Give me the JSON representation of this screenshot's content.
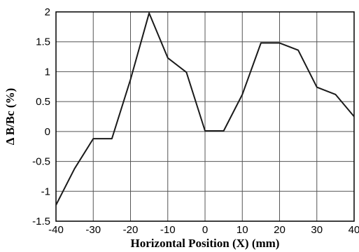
{
  "chart_data": {
    "type": "line",
    "xlabel": "Horizontal Position (X) (mm)",
    "ylabel": "Δ B/Bc (%)",
    "xlim": [
      -40,
      40
    ],
    "ylim": [
      -1.5,
      2
    ],
    "x_ticks": [
      -40,
      -30,
      -20,
      -10,
      0,
      10,
      20,
      30,
      40
    ],
    "y_ticks": [
      -1.5,
      -1,
      -0.5,
      0,
      0.5,
      1,
      1.5,
      2
    ],
    "x_tick_labels": [
      "-40",
      "-30",
      "-20",
      "-10",
      "0",
      "10",
      "20",
      "30",
      "40"
    ],
    "y_tick_labels": [
      "-1.5",
      "-1",
      "-0.5",
      "0",
      "0.5",
      "1",
      "1.5",
      "2"
    ],
    "grid": true,
    "series": [
      {
        "x": [
          -40,
          -35,
          -30,
          -25,
          -20,
          -15,
          -10,
          -5,
          0,
          5,
          10,
          15,
          20,
          25,
          30,
          35,
          40
        ],
        "y": [
          -1.23,
          -0.62,
          -0.12,
          -0.12,
          0.87,
          1.98,
          1.23,
          0.99,
          0.01,
          0.01,
          0.62,
          1.48,
          1.48,
          1.36,
          0.74,
          0.62,
          0.25
        ]
      }
    ]
  }
}
